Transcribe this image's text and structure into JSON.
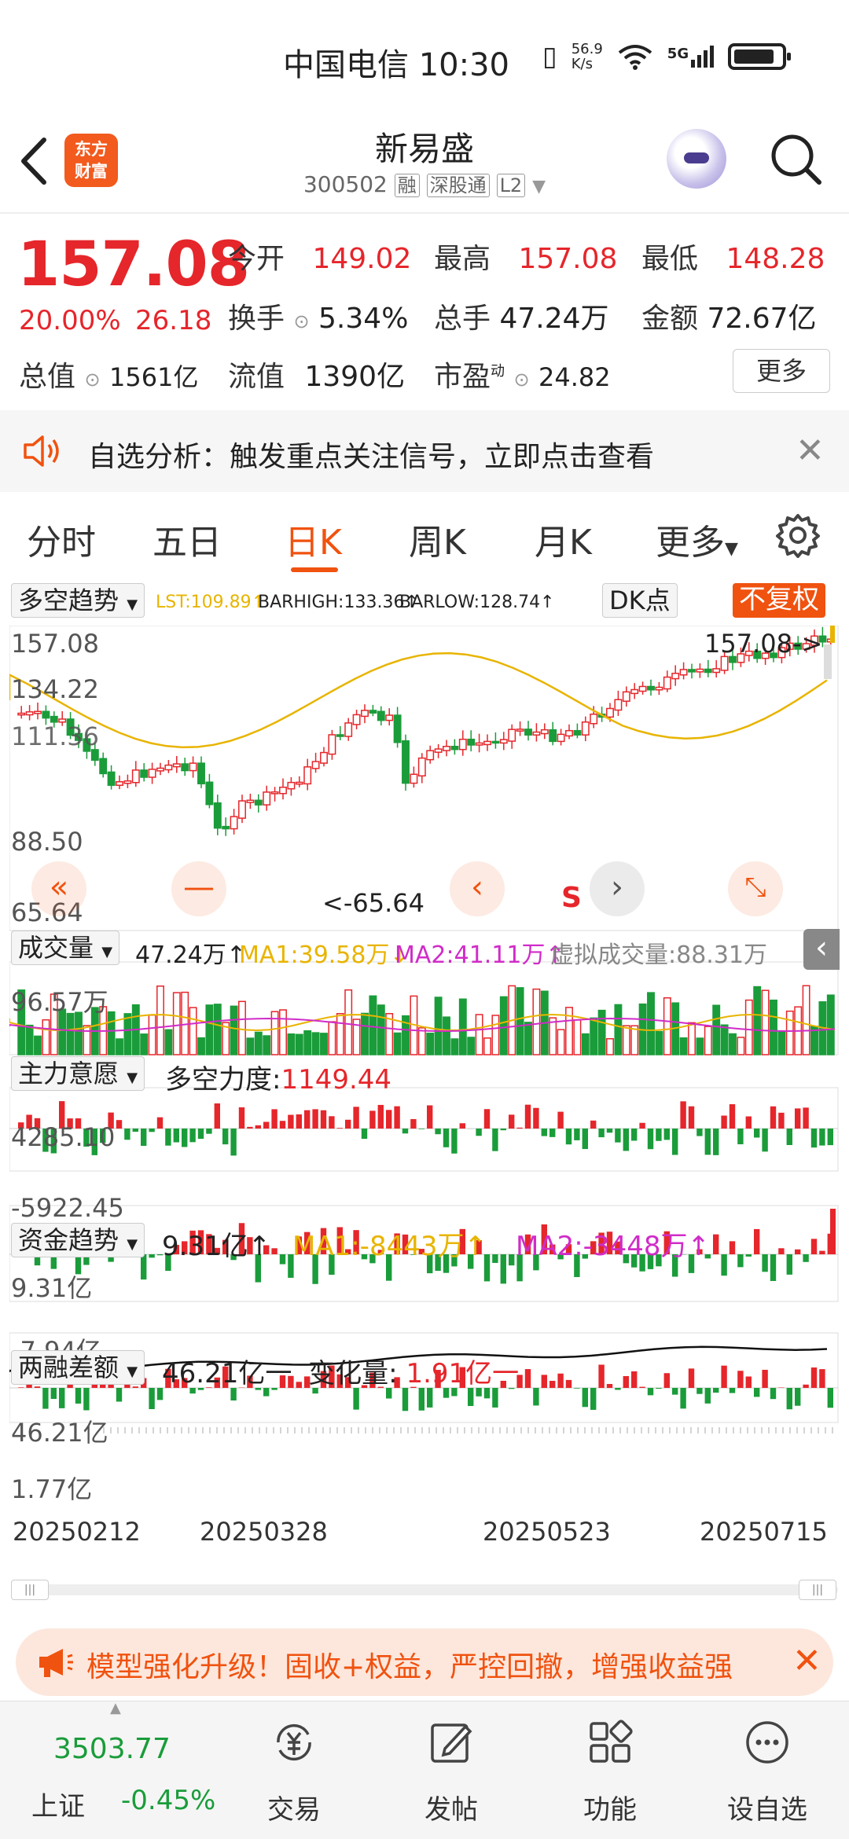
{
  "status": {
    "carrier_time": "中国电信 10:30",
    "net_speed_top": "56.9",
    "net_speed_bottom": "K/s",
    "network": "5G"
  },
  "header": {
    "brand_top": "东方",
    "brand_bottom": "财富",
    "stock_name": "新易盛",
    "stock_code": "300502",
    "tags": [
      "融",
      "深股通",
      "L2"
    ]
  },
  "quote": {
    "price": "157.08",
    "change_pct": "20.00%",
    "change_abs": "26.18",
    "open_label": "今开",
    "open": "149.02",
    "high_label": "最高",
    "high": "157.08",
    "low_label": "最低",
    "low": "148.28",
    "turnover_label": "换手",
    "turnover": "5.34%",
    "volume_label": "总手",
    "volume": "47.24万",
    "amount_label": "金额",
    "amount": "72.67亿",
    "mktcap_label": "总值",
    "mktcap": "1561亿",
    "float_label": "流值",
    "float": "1390亿",
    "pe_label": "市盈",
    "pe_sup": "动",
    "pe": "24.82",
    "more_label": "更多"
  },
  "alert": {
    "text": "自选分析：触发重点关注信号，立即点击查看"
  },
  "tabs": [
    "分时",
    "五日",
    "日K",
    "周K",
    "月K",
    "更多"
  ],
  "active_tab": "日K",
  "kline": {
    "indicator_label": "多空趋势",
    "lst": "LST:109.89↑",
    "barhigh": "BARHIGH:133.36↑",
    "barlow": "BARLOW:128.74↑",
    "dk_label": "DK点",
    "nofq_label": "不复权",
    "y_labels": [
      "157.08",
      "134.22",
      "111.36",
      "88.50",
      "65.64"
    ],
    "last_price_tag": "157.08->",
    "low_tag": "<-65.64",
    "s_marker": "S"
  },
  "volume_panel": {
    "label": "成交量",
    "value": "47.24万↑",
    "ma1": "MA1:39.58万↓",
    "ma2": "MA2:41.11万↑",
    "virtual": "虚拟成交量:88.31万",
    "y_top": "96.57万"
  },
  "zlyy_panel": {
    "label": "主力意愿",
    "text_label": "多空力度:",
    "value": "1149.44",
    "y_top": "4285.10",
    "y_bottom": "-5922.45"
  },
  "fund_panel": {
    "label": "资金趋势",
    "value": "9.31亿↑",
    "ma1": "MA1:-8443万↑",
    "ma2": "MA2:-3448万↑",
    "y_top": "9.31亿",
    "y_bottom": "-7.94亿"
  },
  "margin_panel": {
    "label": "两融差额",
    "value": "46.21亿一",
    "change_label": "变化量:",
    "change_value": "1.91亿一",
    "y_top": "46.21亿",
    "y_bottom": "1.77亿"
  },
  "dates": [
    "20250212",
    "20250328",
    "20250523",
    "20250715"
  ],
  "promo": {
    "text": "模型强化升级！固收+权益，严控回撤，增强收益强"
  },
  "bottom_nav": {
    "index_value": "3503.77",
    "index_name": "上证",
    "index_change": "-0.45%",
    "items": [
      "交易",
      "发帖",
      "功能",
      "设自选"
    ]
  },
  "colors": {
    "up": "#e5262b",
    "down": "#1a9c3a",
    "accent": "#f0520f",
    "ma_yellow": "#e8b400",
    "ma_magenta": "#d02cc8"
  }
}
